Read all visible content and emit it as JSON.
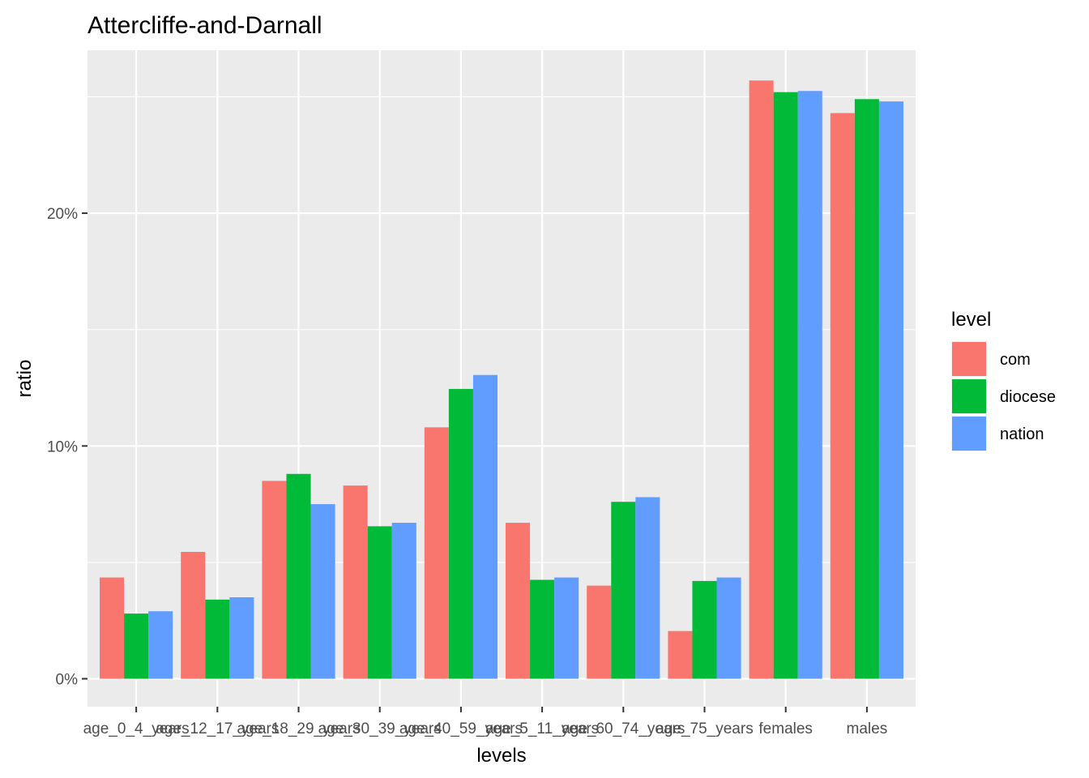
{
  "chart_data": {
    "type": "bar",
    "title": "Attercliffe-and-Darnall",
    "xlabel": "levels",
    "ylabel": "ratio",
    "categories": [
      "age_0_4_years",
      "age_12_17_years",
      "age_18_29_years",
      "age_30_39_years",
      "age_40_59_years",
      "age_5_11_years",
      "age_60_74_years",
      "age_75_years",
      "females",
      "males"
    ],
    "series": [
      {
        "name": "com",
        "color": "#F8766D",
        "values": [
          4.35,
          5.45,
          8.5,
          8.3,
          10.8,
          6.7,
          4.0,
          2.05,
          25.7,
          24.3
        ]
      },
      {
        "name": "diocese",
        "color": "#00BA38",
        "values": [
          2.8,
          3.4,
          8.8,
          6.55,
          12.45,
          4.25,
          7.6,
          4.2,
          25.2,
          24.9
        ]
      },
      {
        "name": "nation",
        "color": "#619CFF",
        "values": [
          2.9,
          3.5,
          7.5,
          6.7,
          13.05,
          4.35,
          7.8,
          4.35,
          25.25,
          24.8
        ]
      }
    ],
    "yticks": [
      {
        "value": 0,
        "label": "0%"
      },
      {
        "value": 10,
        "label": "10%"
      },
      {
        "value": 20,
        "label": "20%"
      }
    ],
    "ylim": [
      -1.2,
      27
    ],
    "legend": {
      "title": "level",
      "position": "right"
    },
    "grid": true
  }
}
